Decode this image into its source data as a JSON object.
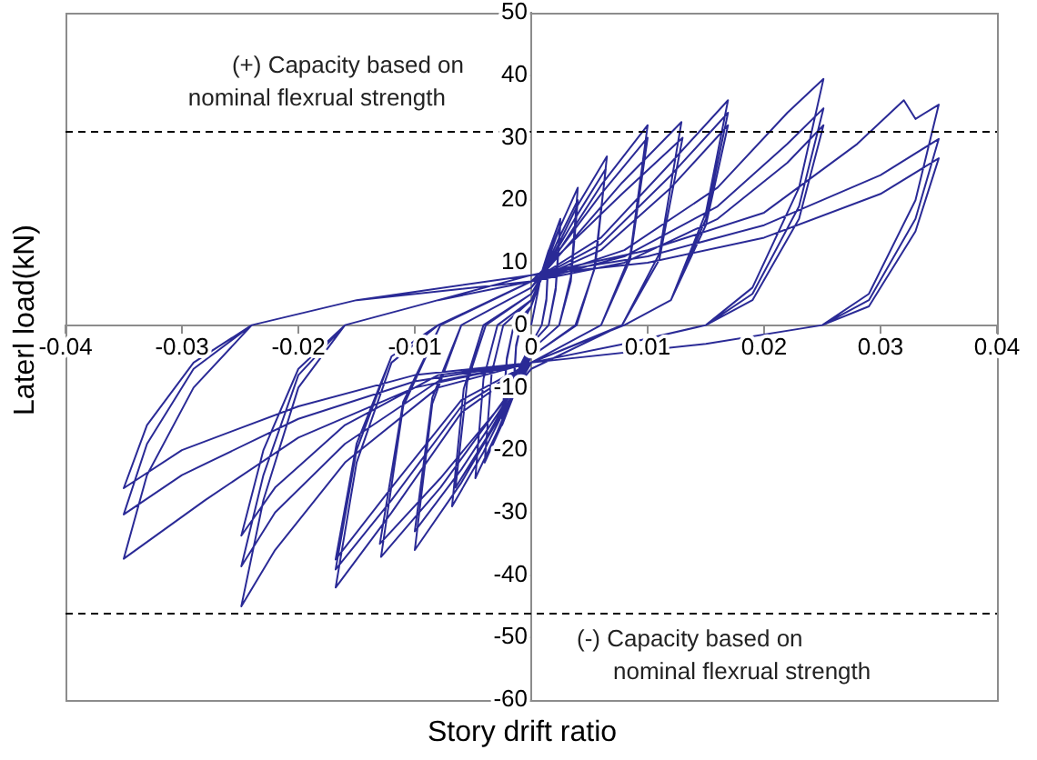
{
  "chart_data": {
    "type": "line",
    "xlabel": "Story drift ratio",
    "ylabel": "Laterl load(kN)",
    "xlim": [
      -0.04,
      0.04
    ],
    "xticks": [
      -0.04,
      -0.03,
      -0.02,
      -0.01,
      0,
      0.01,
      0.02,
      0.03,
      0.04
    ],
    "ylim": [
      -60,
      50
    ],
    "yticks": [
      -60,
      -50,
      -40,
      -30,
      -20,
      -10,
      0,
      10,
      20,
      30,
      40,
      50
    ],
    "grid": false,
    "legend": false,
    "marker": "none",
    "line_style": "solid",
    "ref_lines": [
      {
        "axis": "y",
        "value": 31,
        "label": "(+) Capacity based on\nnominal flexrual strength",
        "color": "#000000",
        "line_style": "dashed"
      },
      {
        "axis": "y",
        "value": -46,
        "label": "(-) Capacity based on\nnominal flexrual strength",
        "color": "#000000",
        "line_style": "dashed"
      }
    ],
    "series": [
      {
        "color": "#2a2a96",
        "x": [
          0,
          0.0009,
          0.0015,
          0.0013,
          0.0009,
          0,
          -0.0009,
          -0.0015,
          -0.0013,
          -0.0009,
          0,
          0.0009,
          0.0015,
          0.0013,
          0.0009,
          0,
          -0.0009,
          -0.0015,
          -0.0013,
          -0.0009,
          0,
          0.0015,
          0.0025,
          0.0021,
          0.0015,
          0,
          -0.0015,
          -0.0025,
          -0.0021,
          -0.0015,
          0,
          0.0015,
          0.0025,
          0.0021,
          0.0015,
          0,
          -0.0015,
          -0.0025,
          -0.0021,
          -0.0015,
          0,
          0.0024,
          0.004,
          0.0034,
          0.0024,
          0,
          -0.0024,
          -0.004,
          -0.0034,
          -0.0024,
          0,
          0.0024,
          0.004,
          0.0034,
          0.0024,
          0,
          -0.0029,
          -0.0048,
          -0.0041,
          -0.0029,
          0,
          0.0039,
          0.0065,
          0.0055,
          0.0039,
          0,
          -0.0041,
          -0.0068,
          -0.0058,
          -0.0041,
          0,
          0.0039,
          0.0064,
          0.0054,
          0.0038,
          0,
          -0.0039,
          -0.0065,
          -0.0055,
          -0.0039,
          0,
          0.006,
          0.01,
          0.0085,
          0.006,
          0,
          -0.006,
          -0.01,
          -0.0085,
          -0.006,
          0,
          0.006,
          0.01,
          0.0085,
          0.006,
          0,
          -0.006,
          -0.01,
          -0.0085,
          -0.006,
          0,
          0.0078,
          0.0129,
          0.011,
          0.0078,
          0,
          -0.0078,
          -0.0129,
          -0.011,
          -0.0078,
          0,
          0.0078,
          0.013,
          0.011,
          0.0078,
          0,
          -0.0078,
          -0.013,
          -0.011,
          -0.0078,
          0,
          0.006,
          0.012,
          0.0169,
          0.015,
          0.012,
          0.008,
          0,
          -0.006,
          -0.012,
          -0.0168,
          -0.015,
          -0.012,
          -0.008,
          0,
          0.006,
          0.012,
          0.0169,
          0.015,
          0.012,
          0.008,
          0,
          -0.006,
          -0.012,
          -0.0168,
          -0.015,
          -0.012,
          -0.008,
          0,
          0.006,
          0.012,
          0.0169,
          0.015,
          0.012,
          0.008,
          0,
          -0.006,
          -0.012,
          -0.0168,
          -0.015,
          -0.012,
          -0.008,
          0,
          0.008,
          0.016,
          0.022,
          0.0251,
          0.023,
          0.019,
          0.015,
          0.008,
          0,
          -0.008,
          -0.016,
          -0.022,
          -0.0249,
          -0.023,
          -0.02,
          -0.016,
          -0.008,
          0,
          0.008,
          0.016,
          0.022,
          0.0251,
          0.023,
          0.019,
          0.015,
          0.008,
          0,
          -0.008,
          -0.016,
          -0.022,
          -0.0249,
          -0.023,
          -0.02,
          -0.016,
          -0.008,
          0,
          0.008,
          0.016,
          0.022,
          0.0251,
          0.023,
          0.019,
          0.015,
          0.008,
          0,
          -0.008,
          -0.016,
          -0.022,
          -0.0249,
          -0.023,
          -0.02,
          -0.016,
          -0.008,
          0,
          0.01,
          0.02,
          0.028,
          0.032,
          0.033,
          0.035,
          0.033,
          0.029,
          0.025,
          0.015,
          0,
          -0.01,
          -0.02,
          -0.028,
          -0.035,
          -0.033,
          -0.029,
          -0.024,
          -0.015,
          0,
          0.01,
          0.02,
          0.03,
          0.035,
          0.033,
          0.029,
          0.025,
          0.015,
          0,
          -0.01,
          -0.02,
          -0.03,
          -0.035,
          -0.033,
          -0.029,
          -0.024,
          -0.015,
          0,
          0.01,
          0.02,
          0.03,
          0.035,
          0.033,
          0.029,
          0.025,
          0.015,
          0,
          -0.01,
          -0.02,
          -0.03,
          -0.035,
          -0.033,
          -0.029,
          -0.024,
          -0.015,
          0
        ],
        "values": [
          0,
          8.4,
          12,
          4.2,
          0,
          -3,
          -7,
          -10,
          -3.5,
          0,
          3,
          7.7,
          11,
          3.9,
          0,
          -3,
          -6.3,
          -9,
          -3.2,
          0,
          3,
          11.9,
          17,
          6,
          0,
          -3,
          -11.2,
          -16,
          -5.6,
          0,
          3,
          11.2,
          16,
          5.6,
          0,
          -3,
          -10.5,
          -15,
          -5.3,
          0,
          3,
          15.4,
          22,
          7.7,
          0,
          -4,
          -15.4,
          -22,
          -7.7,
          0,
          4,
          14,
          20,
          7,
          0,
          -4,
          -17,
          -24.5,
          -8.6,
          0,
          4,
          18.9,
          27,
          9.5,
          0,
          -5,
          -20.3,
          -29,
          -10.2,
          0,
          5,
          17.5,
          25,
          8.8,
          0,
          -5,
          -18.2,
          -26,
          -9.1,
          0,
          5,
          22.4,
          32,
          11.2,
          0,
          -6,
          -25.2,
          -36,
          -12.6,
          0,
          6,
          21,
          30,
          10.5,
          0,
          -6,
          -23.1,
          -33,
          -11.6,
          0,
          6,
          22.8,
          32.5,
          11.4,
          0,
          -6,
          -26,
          -37.1,
          -13,
          0,
          7,
          21,
          30,
          10.5,
          0,
          -7,
          -24.5,
          -35,
          -12.3,
          0,
          7,
          14,
          26,
          36,
          18,
          4,
          0,
          -6,
          -14,
          -30,
          -42,
          -22,
          -6,
          0,
          7,
          13,
          24,
          34,
          17,
          4,
          0,
          -6,
          -13,
          -28,
          -39.1,
          -20,
          -5,
          0,
          7,
          12,
          22,
          32,
          16,
          4,
          0,
          -6,
          -12,
          -26,
          -37.5,
          -19,
          -5,
          0,
          7,
          12,
          22,
          34,
          39.4,
          22,
          6,
          0,
          -3,
          -6,
          -10,
          -22,
          -36,
          -45,
          -28,
          -10,
          0,
          4,
          7,
          11,
          19,
          29,
          34.7,
          19,
          5,
          0,
          -3,
          -6,
          -9,
          -19,
          -30,
          -38.6,
          -24,
          -8,
          0,
          4,
          7,
          10,
          17,
          26,
          32,
          17,
          4,
          0,
          -3,
          -6,
          -8,
          -16,
          -26,
          -33.7,
          -20,
          -7,
          0,
          4,
          8,
          12,
          18,
          29,
          36,
          33,
          35.3,
          20,
          5,
          0,
          -3,
          -6,
          -10,
          -18,
          -28,
          -37.4,
          -24,
          -10,
          0,
          4,
          8,
          11,
          16,
          24,
          29.8,
          17,
          4,
          0,
          -3,
          -6,
          -9,
          -15,
          -24,
          -30.3,
          -19,
          -7,
          0,
          4,
          8,
          10,
          14,
          21,
          26.7,
          15,
          3,
          0,
          -3,
          -6,
          -8,
          -13,
          -20,
          -26.1,
          -16,
          -6,
          0,
          4,
          7
        ]
      }
    ]
  }
}
